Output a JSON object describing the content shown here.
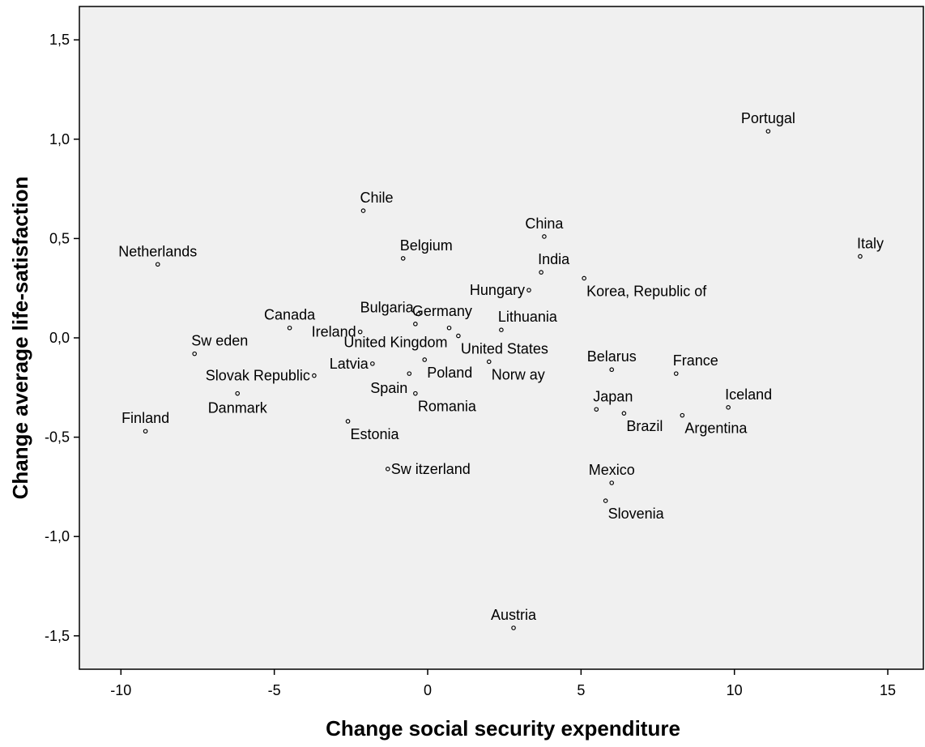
{
  "chart_data": {
    "type": "scatter",
    "title": "",
    "xlabel": "Change social security expenditure",
    "ylabel": "Change average life-satisfaction",
    "xlim": [
      -11.4,
      16.3
    ],
    "ylim": [
      -1.67,
      1.65
    ],
    "xticks": [
      {
        "value": -10,
        "label": "-10"
      },
      {
        "value": -5,
        "label": "-5"
      },
      {
        "value": 0,
        "label": "0"
      },
      {
        "value": 5,
        "label": "5"
      },
      {
        "value": 10,
        "label": "10"
      },
      {
        "value": 15,
        "label": "15"
      }
    ],
    "yticks": [
      {
        "value": 1.5,
        "label": "1,5"
      },
      {
        "value": 1.0,
        "label": "1,0"
      },
      {
        "value": 0.5,
        "label": "0,5"
      },
      {
        "value": 0.0,
        "label": "0,0"
      },
      {
        "value": -0.5,
        "label": "-0,5"
      },
      {
        "value": -1.0,
        "label": "-1,0"
      },
      {
        "value": -1.5,
        "label": "-1,5"
      }
    ],
    "grid": false,
    "legend": "none",
    "plot_background": "#f0f0f0",
    "marker_color": "#000000",
    "points": [
      {
        "label": "Portugal",
        "x": 11.1,
        "y": 1.04,
        "label_pos": "above"
      },
      {
        "label": "Italy",
        "x": 14.1,
        "y": 0.41,
        "label_pos": "above-right"
      },
      {
        "label": "Chile",
        "x": -2.1,
        "y": 0.64,
        "label_pos": "above-right"
      },
      {
        "label": "China",
        "x": 3.8,
        "y": 0.51,
        "label_pos": "above"
      },
      {
        "label": "Netherlands",
        "x": -8.8,
        "y": 0.37,
        "label_pos": "above"
      },
      {
        "label": "Belgium",
        "x": -0.8,
        "y": 0.4,
        "label_pos": "above-right"
      },
      {
        "label": "India",
        "x": 3.7,
        "y": 0.33,
        "label_pos": "above-right"
      },
      {
        "label": "Korea, Republic of",
        "x": 5.1,
        "y": 0.3,
        "label_pos": "below-right"
      },
      {
        "label": "Hungary",
        "x": 3.3,
        "y": 0.24,
        "label_pos": "left"
      },
      {
        "label": "Canada",
        "x": -4.5,
        "y": 0.05,
        "label_pos": "above"
      },
      {
        "label": "Bulgaria",
        "x": -0.3,
        "y": 0.12,
        "label_pos": "above-left"
      },
      {
        "label": "Germany",
        "x": -0.4,
        "y": 0.07,
        "label_pos": "above-right"
      },
      {
        "label": "Ireland",
        "x": -2.2,
        "y": 0.03,
        "label_pos": "left"
      },
      {
        "label": "Lithuania",
        "x": 2.4,
        "y": 0.04,
        "label_pos": "above-right"
      },
      {
        "label": "United Kingdom",
        "x": 0.7,
        "y": 0.05,
        "label_pos": "below-left"
      },
      {
        "label": "United States",
        "x": 1.0,
        "y": 0.01,
        "label_pos": "below-right"
      },
      {
        "label": "Sw eden",
        "x": -7.6,
        "y": -0.08,
        "label_pos": "above-right"
      },
      {
        "label": "Latvia",
        "x": -1.8,
        "y": -0.13,
        "label_pos": "left"
      },
      {
        "label": "Poland",
        "x": -0.1,
        "y": -0.11,
        "label_pos": "below-right"
      },
      {
        "label": "Norw ay",
        "x": 2.0,
        "y": -0.12,
        "label_pos": "below-right"
      },
      {
        "label": "Slovak Republic",
        "x": -3.7,
        "y": -0.19,
        "label_pos": "left"
      },
      {
        "label": "Spain",
        "x": -0.6,
        "y": -0.18,
        "label_pos": "below-left"
      },
      {
        "label": "Romania",
        "x": -0.4,
        "y": -0.28,
        "label_pos": "below-right"
      },
      {
        "label": "Danmark",
        "x": -6.2,
        "y": -0.28,
        "label_pos": "below"
      },
      {
        "label": "Belarus",
        "x": 6.0,
        "y": -0.16,
        "label_pos": "above"
      },
      {
        "label": "France",
        "x": 8.1,
        "y": -0.18,
        "label_pos": "above-right"
      },
      {
        "label": "Japan",
        "x": 5.5,
        "y": -0.36,
        "label_pos": "above-right"
      },
      {
        "label": "Brazil",
        "x": 6.4,
        "y": -0.38,
        "label_pos": "below-right"
      },
      {
        "label": "Iceland",
        "x": 9.8,
        "y": -0.35,
        "label_pos": "above-right"
      },
      {
        "label": "Argentina",
        "x": 8.3,
        "y": -0.39,
        "label_pos": "below-right"
      },
      {
        "label": "Finland",
        "x": -9.2,
        "y": -0.47,
        "label_pos": "above"
      },
      {
        "label": "Estonia",
        "x": -2.6,
        "y": -0.42,
        "label_pos": "below-right"
      },
      {
        "label": "Sw itzerland",
        "x": -1.3,
        "y": -0.66,
        "label_pos": "right"
      },
      {
        "label": "Mexico",
        "x": 6.0,
        "y": -0.73,
        "label_pos": "above"
      },
      {
        "label": "Slovenia",
        "x": 5.8,
        "y": -0.82,
        "label_pos": "below-right"
      },
      {
        "label": "Austria",
        "x": 2.8,
        "y": -1.46,
        "label_pos": "above"
      }
    ]
  }
}
